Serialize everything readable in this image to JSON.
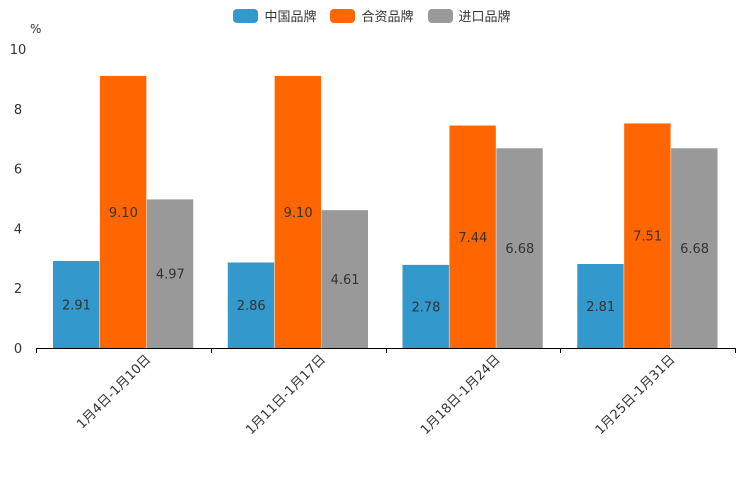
{
  "chart_data": {
    "type": "bar",
    "title": "",
    "xlabel": "",
    "ylabel": "%",
    "ylim": [
      0,
      10
    ],
    "yticks": [
      0,
      2,
      4,
      6,
      8,
      10
    ],
    "grid": false,
    "legend_position": "top",
    "categories": [
      "1月4日-1月10日",
      "1月11日-1月17日",
      "1月18日-1月24日",
      "1月25日-1月31日"
    ],
    "series": [
      {
        "name": "中国品牌",
        "color": "#3398cc",
        "values": [
          2.91,
          2.86,
          2.78,
          2.81
        ],
        "labels": [
          "2.91",
          "2.86",
          "2.78",
          "2.81"
        ]
      },
      {
        "name": "合资品牌",
        "color": "#ff6600",
        "values": [
          9.1,
          9.1,
          7.44,
          7.51
        ],
        "labels": [
          "9.10",
          "9.10",
          "7.44",
          "7.51"
        ]
      },
      {
        "name": "进口品牌",
        "color": "#999999",
        "values": [
          4.97,
          4.61,
          6.68,
          6.68
        ],
        "labels": [
          "4.97",
          "4.61",
          "6.68",
          "6.68"
        ]
      }
    ]
  }
}
